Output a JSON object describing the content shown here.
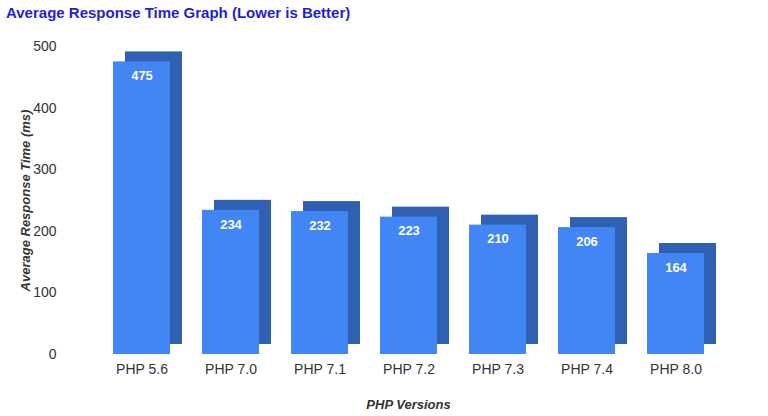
{
  "chart_data": {
    "type": "bar",
    "title": "Average Response Time Graph (Lower is Better)",
    "xlabel": "PHP Versions",
    "ylabel": "Average Response Time (ms)",
    "categories": [
      "PHP 5.6",
      "PHP 7.0",
      "PHP 7.1",
      "PHP 7.2",
      "PHP 7.3",
      "PHP 7.4",
      "PHP 8.0"
    ],
    "values": [
      475,
      234,
      232,
      223,
      210,
      206,
      164
    ],
    "color": "#4285f4",
    "ylim": [
      0,
      500
    ],
    "yticks": [
      0,
      100,
      200,
      300,
      400,
      500
    ],
    "grid": false,
    "data_labels": true
  }
}
